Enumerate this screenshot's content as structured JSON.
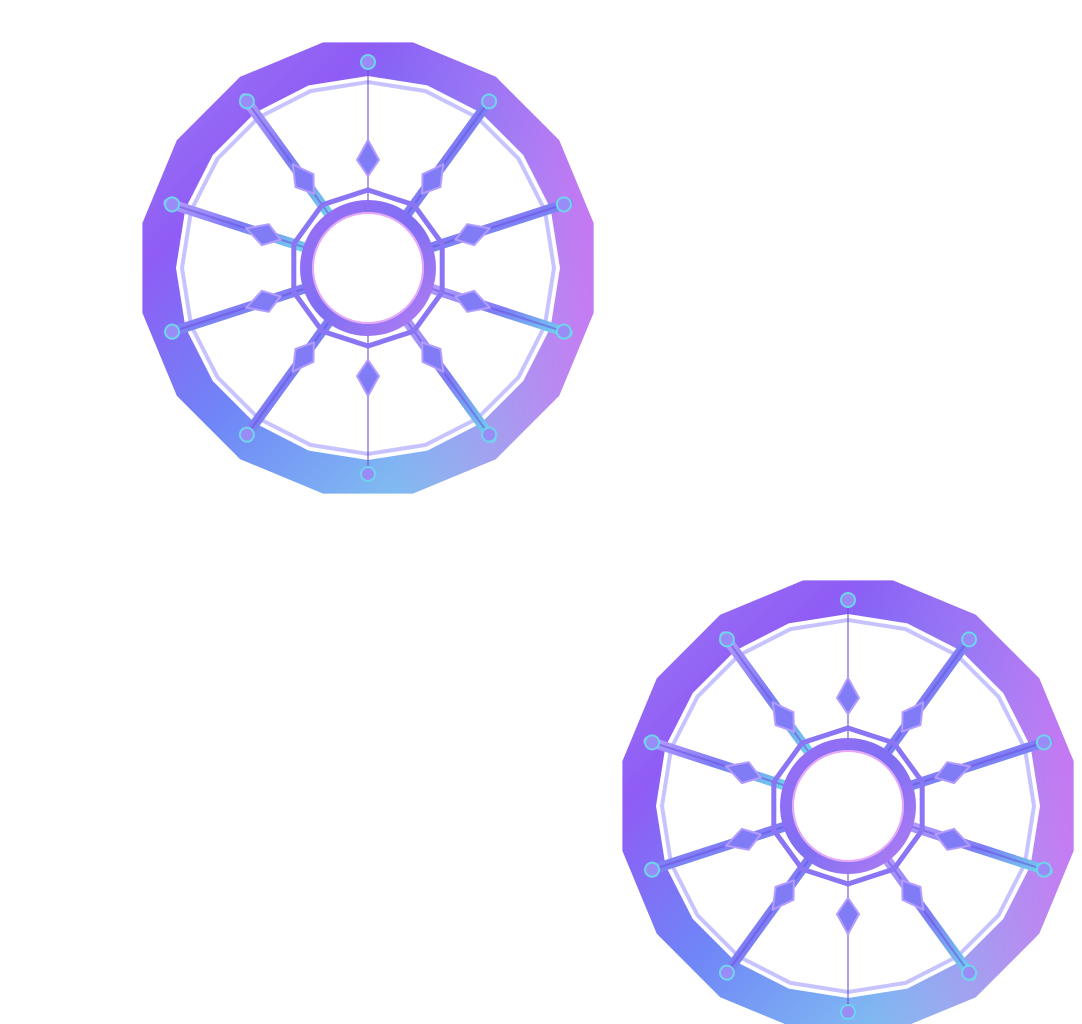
{
  "background_color": "#ffffff",
  "wheel_colors": {
    "violet": "#8f5cf5",
    "magenta": "#d36ef2",
    "blue": "#6f86f7",
    "cyan": "#7fe3ea",
    "light": "#c7c3ff",
    "deep": "#6a4ee0"
  },
  "wheels": [
    {
      "id": "wheel-upper-left",
      "spoke_count": 10,
      "icon": "ship-wheel-icon"
    },
    {
      "id": "wheel-lower-right",
      "spoke_count": 10,
      "icon": "ship-wheel-icon"
    }
  ]
}
